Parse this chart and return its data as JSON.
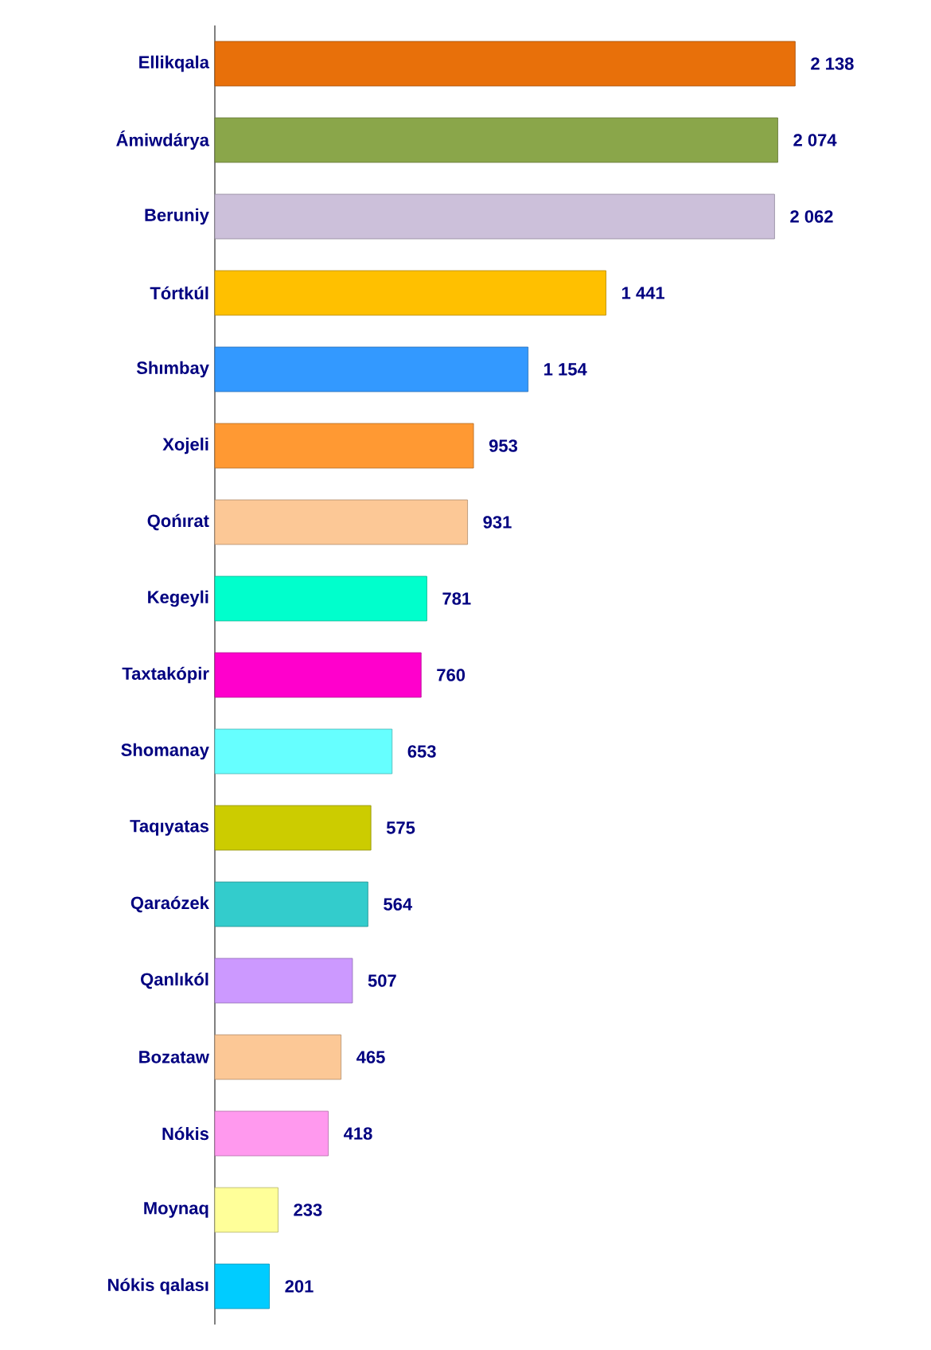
{
  "chart_data": {
    "type": "bar",
    "orientation": "horizontal",
    "tick_labels": "y",
    "categories": [
      "Ellikqala",
      "Ámiwdárya",
      "Beruniy",
      "Tórtkúl",
      "Shımbay",
      "Xojeli",
      "Qońırat",
      "Kegeyli",
      "Taxtakópir",
      "Shomanay",
      "Taqıyatas",
      "Qaraózek",
      "Qanlıkól",
      "Bozataw",
      "Nókis",
      "Moynaq",
      "Nókis qalası"
    ],
    "values": [
      2138,
      2074,
      2062,
      1441,
      1154,
      953,
      931,
      781,
      760,
      653,
      575,
      564,
      507,
      465,
      418,
      233,
      201
    ],
    "value_labels": [
      "2 138",
      "2 074",
      "2 062",
      "1 441",
      "1 154",
      "953",
      "931",
      "781",
      "760",
      "653",
      "575",
      "564",
      "507",
      "465",
      "418",
      "233",
      "201"
    ],
    "colors": [
      "#e8700a",
      "#8aa64a",
      "#ccc0da",
      "#ffc000",
      "#3399ff",
      "#ff9933",
      "#fcc896",
      "#00ffcc",
      "#ff00cc",
      "#66ffff",
      "#cccc00",
      "#33cccc",
      "#cc99ff",
      "#fcc896",
      "#ff99ee",
      "#ffff99",
      "#00ccff"
    ],
    "xlim": [
      0,
      2140
    ]
  }
}
